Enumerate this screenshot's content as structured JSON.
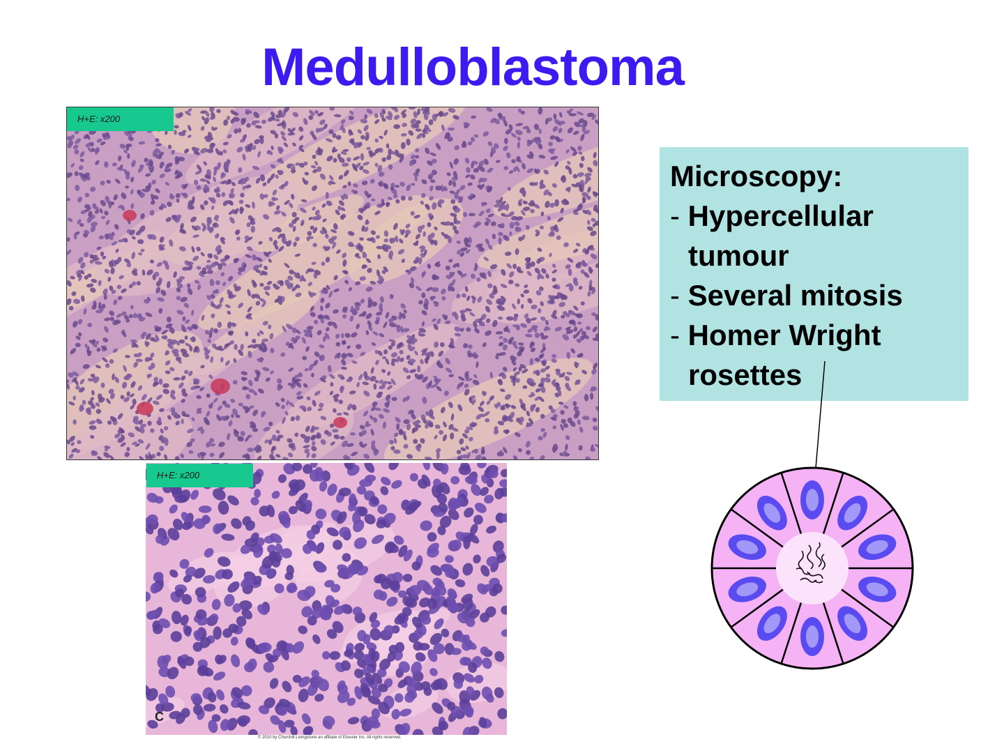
{
  "slide": {
    "title": "Medulloblastoma"
  },
  "images": {
    "top": {
      "stain_label": "H+E: x200"
    },
    "bottom": {
      "stain_label": "H+E: x200",
      "panel_letter": "C",
      "copyright": "© 2010 by Churchill Livingstone an affiliate of Elsevier Inc. All rights reserved."
    }
  },
  "info": {
    "heading": "Microscopy:",
    "items": [
      {
        "first": "Hypercellular",
        "rest": "tumour"
      },
      {
        "first": "Several mitosis",
        "rest": ""
      },
      {
        "first": "Homer Wright",
        "rest": "rosettes"
      }
    ]
  },
  "colors": {
    "title": "#3b1bf0",
    "stain_tag": "#17c98f",
    "info_bg": "#b2e3e3",
    "rosette_fill": "#f5b2f5",
    "nucleus": "#5a4bf0"
  },
  "diagram": {
    "name": "homer-wright-rosette",
    "cells": 10
  }
}
